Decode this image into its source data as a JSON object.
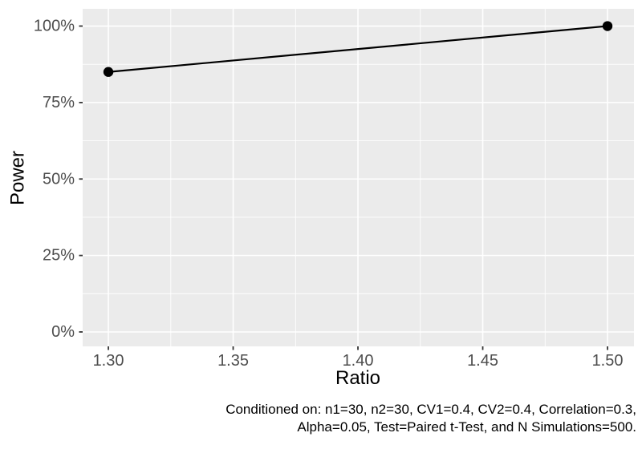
{
  "figure": {
    "background": "#FFFFFF"
  },
  "chart_data": {
    "type": "line",
    "title": "",
    "xlabel": "Ratio",
    "ylabel": "Power",
    "x": [
      1.3,
      1.5
    ],
    "series": [
      {
        "name": "Power",
        "values": [
          85,
          100
        ]
      }
    ],
    "y_unit": "percent",
    "x_ticks": {
      "values": [
        1.3,
        1.35,
        1.4,
        1.45,
        1.5
      ],
      "labels": [
        "1.30",
        "1.35",
        "1.40",
        "1.45",
        "1.50"
      ]
    },
    "y_ticks": {
      "values": [
        0,
        25,
        50,
        75,
        100
      ],
      "labels": [
        "0%",
        "25%",
        "50%",
        "75%",
        "100%"
      ]
    },
    "x_minor_ticks": [
      1.325,
      1.375,
      1.425,
      1.475
    ],
    "y_minor_ticks": [
      12.5,
      37.5,
      62.5,
      87.5
    ],
    "xlim": [
      1.2897,
      1.5106
    ],
    "ylim": [
      -4.72,
      105.64
    ],
    "grid": true,
    "legend": false,
    "caption": [
      "Conditioned on: n1=30, n2=30, CV1=0.4, CV2=0.4, Correlation=0.3,",
      "Alpha=0.05, Test=Paired t-Test, and N Simulations=500."
    ],
    "style": {
      "panel_bg": "#EBEBEB",
      "grid_color": "#FFFFFF",
      "line_color": "#000000",
      "point_color": "#000000",
      "tick_label_color": "#4D4D4D",
      "tick_mark_color": "#333333",
      "axis_title_color": "#000000",
      "caption_color": "#000000"
    }
  }
}
